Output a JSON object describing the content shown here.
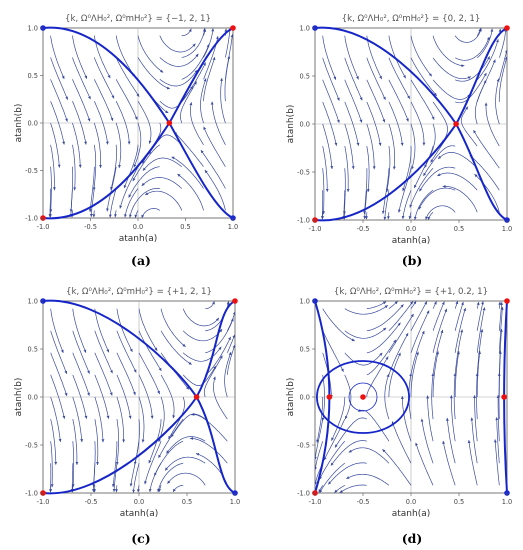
{
  "chart_data": [
    {
      "type": "streamplot",
      "title": "{k, Ω⁰ΛH₀², Ω⁰mH₀²} = {−1, 2, 1}",
      "xlabel": "atanh(a)",
      "ylabel": "atanh(b)",
      "xlim": [
        -1,
        1
      ],
      "ylim": [
        -1,
        1
      ],
      "xticks": [
        "-1.0",
        "-0.5",
        "0.0",
        "0.5",
        "1.0"
      ],
      "yticks": [
        "-1.0",
        "-0.5",
        "0.0",
        "0.5",
        "1.0"
      ],
      "caption": "(a)",
      "saddle": [
        0.33,
        0.0
      ],
      "red_points": [
        [
          0.33,
          0.0
        ],
        [
          1.0,
          1.0
        ],
        [
          -1.0,
          -1.0
        ]
      ],
      "blue_points": [
        [
          -1.0,
          1.0
        ],
        [
          1.0,
          -1.0
        ]
      ]
    },
    {
      "type": "streamplot",
      "title": "{k, Ω⁰ΛH₀², Ω⁰mH₀²} = {0, 2, 1}",
      "xlabel": "atanh(a)",
      "ylabel": "atanh(b)",
      "xlim": [
        -1,
        1
      ],
      "ylim": [
        -1,
        1
      ],
      "xticks": [
        "-1.0",
        "-0.5",
        "0.0",
        "0.5",
        "1.0"
      ],
      "yticks": [
        "-1.0",
        "-0.5",
        "0.0",
        "0.5",
        "1.0"
      ],
      "caption": "(b)",
      "saddle": [
        0.47,
        0.0
      ],
      "red_points": [
        [
          0.47,
          0.0
        ],
        [
          1.0,
          1.0
        ],
        [
          -1.0,
          -1.0
        ]
      ],
      "blue_points": [
        [
          -1.0,
          1.0
        ],
        [
          1.0,
          -1.0
        ]
      ]
    },
    {
      "type": "streamplot",
      "title": "{k, Ω⁰ΛH₀², Ω⁰mH₀²} = {+1, 2, 1}",
      "xlabel": "atanh(a)",
      "ylabel": "atanh(b)",
      "xlim": [
        -1,
        1
      ],
      "ylim": [
        -1,
        1
      ],
      "xticks": [
        "-1.0",
        "-0.5",
        "0.0",
        "0.5",
        "1.0"
      ],
      "yticks": [
        "-1.0",
        "-0.5",
        "0.0",
        "0.5",
        "1.0"
      ],
      "caption": "(c)",
      "saddle": [
        0.6,
        0.0
      ],
      "red_points": [
        [
          0.6,
          0.0
        ],
        [
          1.0,
          1.0
        ],
        [
          -1.0,
          -1.0
        ]
      ],
      "blue_points": [
        [
          -1.0,
          1.0
        ],
        [
          1.0,
          -1.0
        ]
      ]
    },
    {
      "type": "streamplot",
      "title": "{k, Ω⁰ΛH₀², Ω⁰mH₀²} = {+1, 0.2, 1}",
      "xlabel": "atanh(a)",
      "ylabel": "atanh(b)",
      "xlim": [
        -1,
        1
      ],
      "ylim": [
        -1,
        1
      ],
      "xticks": [
        "-1.0",
        "-0.5",
        "0.0",
        "0.5",
        "1.0"
      ],
      "yticks": [
        "-1.0",
        "-0.5",
        "0.0",
        "0.5",
        "1.0"
      ],
      "caption": "(d)",
      "center": [
        -0.5,
        0.0
      ],
      "saddles": [
        [
          -0.85,
          0.0
        ],
        [
          0.97,
          0.0
        ]
      ],
      "red_points": [
        [
          -0.5,
          0.0
        ],
        [
          -0.85,
          0.0
        ],
        [
          0.97,
          0.0
        ],
        [
          1.0,
          1.0
        ],
        [
          -1.0,
          -1.0
        ]
      ],
      "blue_points": [
        [
          -1.0,
          1.0
        ],
        [
          1.0,
          -1.0
        ]
      ]
    }
  ],
  "colors": {
    "stream": "#3a4a9e",
    "separatrix": "#1525c8",
    "red_point": "#ee1111",
    "blue_point": "#1a2ad0",
    "frame": "#555555",
    "axis_line": "#aaaaaa"
  }
}
